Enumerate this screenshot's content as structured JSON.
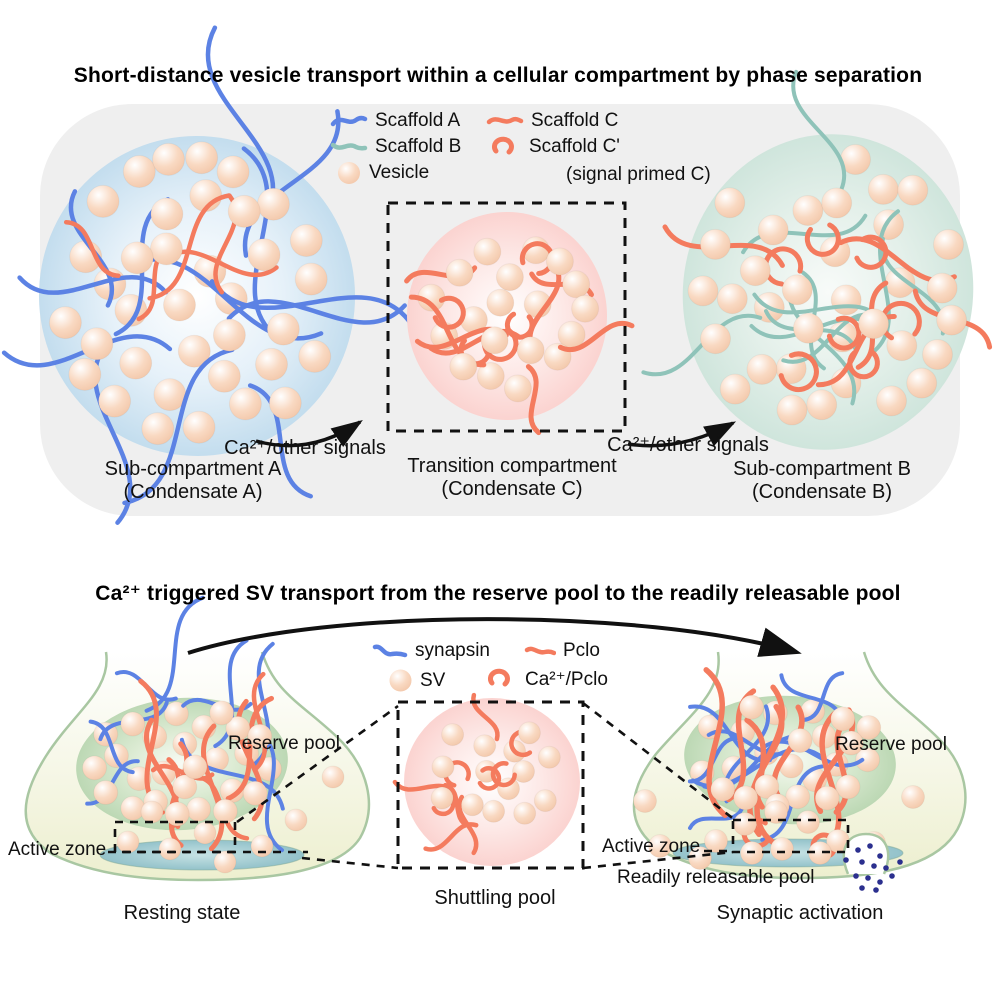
{
  "colors": {
    "scaffold_a": "#5c82e4",
    "scaffold_b": "#8fc3b9",
    "scaffold_c": "#f47b5e",
    "vesicle_mid": "#f9d9c2",
    "vesicle_edge": "#f1c3a4",
    "condensate_a": "#c3ddee",
    "condensate_b": "#cfe5dc",
    "condensate_c": "#fbd3d0",
    "panel_bg": "#efefef",
    "bouton_fill": "#edefcf",
    "membrane": "#a9c7a2",
    "reserve_pool": "#bcd8b4",
    "active_zone": "#93c2ca",
    "neurotransmitter": "#2b2f8e",
    "arrow": "#111111",
    "text": "#111111"
  },
  "panel1": {
    "title": "Short-distance vesicle transport within a cellular compartment by phase separation",
    "legend": {
      "scaffold_a": "Scaffold A",
      "scaffold_b": "Scaffold B",
      "vesicle": "Vesicle",
      "scaffold_c": "Scaffold C",
      "scaffold_c_prime": "Scaffold C'",
      "scaffold_c_prime_note": "(signal primed C)"
    },
    "signal_left": "Ca²⁺/other signals",
    "signal_right": "Ca²⁺/other signals",
    "compartment_a_line1": "Sub-compartment A",
    "compartment_a_line2": "(Condensate A)",
    "compartment_c_line1": "Transition compartment",
    "compartment_c_line2": "(Condensate C)",
    "compartment_b_line1": "Sub-compartment B",
    "compartment_b_line2": "(Condensate B)"
  },
  "panel2": {
    "title": "Ca²⁺ triggered SV transport from the reserve pool to the readily releasable pool",
    "legend": {
      "synapsin": "synapsin",
      "pclo": "Pclo",
      "sv": "SV",
      "ca_pclo": "Ca²⁺/Pclo"
    },
    "reserve_pool_left": "Reserve pool",
    "reserve_pool_right": "Reserve pool",
    "active_zone_left": "Active zone",
    "active_zone_right": "Active zone",
    "readily_releasable_pool": "Readily releasable pool",
    "state_left": "Resting state",
    "state_middle": "Shuttling pool",
    "state_right": "Synaptic activation"
  }
}
